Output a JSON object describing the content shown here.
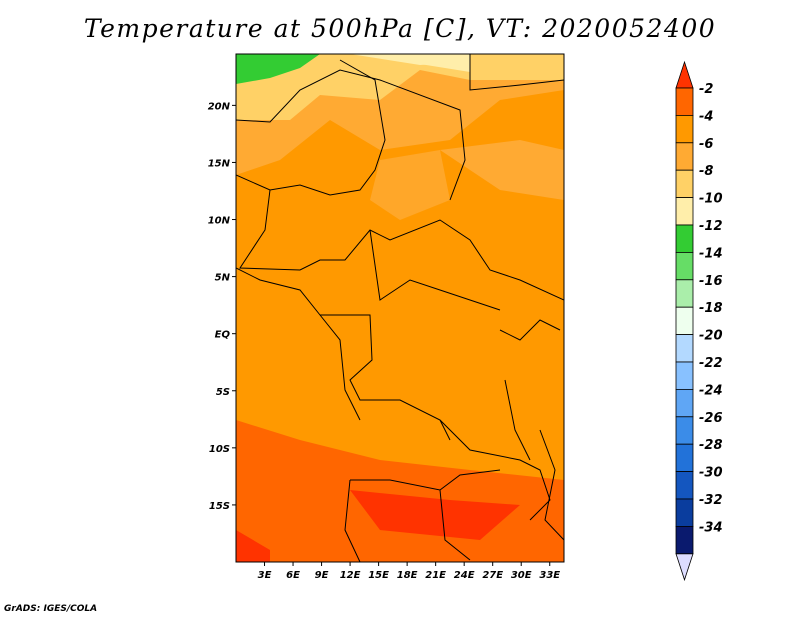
{
  "title": "Temperature at 500hPa [C], VT: 2020052400",
  "credit": "GrADS: IGES/COLA",
  "map": {
    "lon_labels": [
      "3E",
      "6E",
      "9E",
      "12E",
      "15E",
      "18E",
      "21E",
      "24E",
      "27E",
      "30E",
      "33E"
    ],
    "lat_labels": [
      "20N",
      "15N",
      "10N",
      "5N",
      "EQ",
      "5S",
      "10S",
      "15S"
    ],
    "lon_range": [
      0,
      34.5
    ],
    "lat_range": [
      -20,
      24.5
    ]
  },
  "colorbar": {
    "labels": [
      "-2",
      "-4",
      "-6",
      "-8",
      "-10",
      "-12",
      "-14",
      "-16",
      "-18",
      "-20",
      "-22",
      "-24",
      "-26",
      "-28",
      "-30",
      "-32",
      "-34"
    ],
    "colors": [
      "#ff3300",
      "#ff6600",
      "#ff9900",
      "#ffaa33",
      "#ffd166",
      "#ffeeaa",
      "#33cc33",
      "#66dd66",
      "#aaeeaa",
      "#eeffee",
      "#b3d9ff",
      "#88c1ff",
      "#5fa6f5",
      "#3b8ce8",
      "#2272d9",
      "#1456bf",
      "#0a3d9e",
      "#0a1a6e",
      "#ddddff"
    ]
  }
}
